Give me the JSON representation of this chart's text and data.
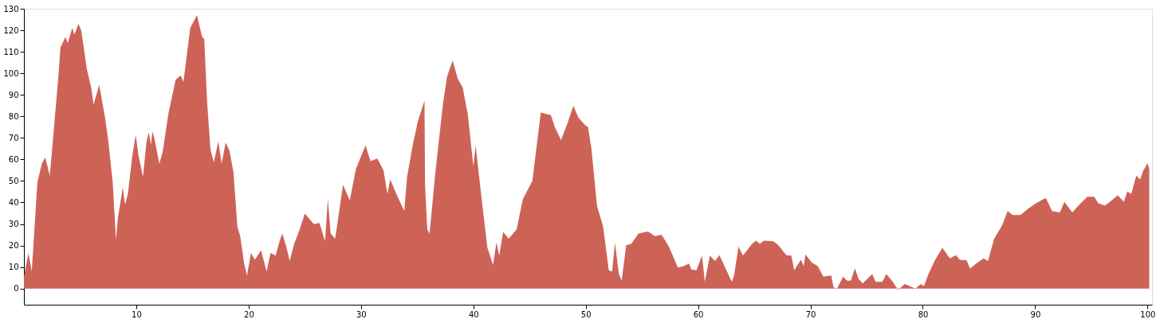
{
  "chart_data": {
    "type": "area",
    "x": [
      0,
      0.2,
      0.4,
      0.7,
      1.2,
      1.6,
      1.9,
      2.3,
      2.5,
      3.1,
      3.25,
      3.7,
      3.9,
      4.3,
      4.5,
      4.85,
      5.1,
      5.6,
      6.0,
      6.2,
      6.7,
      7.2,
      7.5,
      7.9,
      8.2,
      8.35,
      8.8,
      9.0,
      9.25,
      9.65,
      9.95,
      10.2,
      10.6,
      10.9,
      11.1,
      11.3,
      11.45,
      11.6,
      12.05,
      12.35,
      12.85,
      13.5,
      13.95,
      14.2,
      14.8,
      15.4,
      15.85,
      16.05,
      16.3,
      16.6,
      16.9,
      17.3,
      17.6,
      17.95,
      18.3,
      18.65,
      19.0,
      19.25,
      19.6,
      19.85,
      20.2,
      20.55,
      21.1,
      21.6,
      21.95,
      22.4,
      22.75,
      23.0,
      23.35,
      23.65,
      24.05,
      24.5,
      25.0,
      25.8,
      26.3,
      26.8,
      27.05,
      27.3,
      27.7,
      28.4,
      29.0,
      29.55,
      30.4,
      30.85,
      31.45,
      32.0,
      32.35,
      32.6,
      33.2,
      33.85,
      34.1,
      34.6,
      35.05,
      35.65,
      35.7,
      35.9,
      36.1,
      36.6,
      37.3,
      37.65,
      38.15,
      38.6,
      39.05,
      39.5,
      40.0,
      40.2,
      40.7,
      41.25,
      41.75,
      42.05,
      42.3,
      42.65,
      43.15,
      43.85,
      44.4,
      45.25,
      46.0,
      46.9,
      47.25,
      47.8,
      48.3,
      48.9,
      49.35,
      50.0,
      50.2,
      50.5,
      51.0,
      51.55,
      52.05,
      52.35,
      52.6,
      52.95,
      53.2,
      53.6,
      54.05,
      54.7,
      55.55,
      56.15,
      56.75,
      57.4,
      58.2,
      58.7,
      59.2,
      59.4,
      59.85,
      60.35,
      60.6,
      61.05,
      61.5,
      61.9,
      63.0,
      63.2,
      63.6,
      64.0,
      64.8,
      65.15,
      65.5,
      65.85,
      66.7,
      67.15,
      67.85,
      68.3,
      68.55,
      69.15,
      69.4,
      69.55,
      70.1,
      70.65,
      71.15,
      71.85,
      72.05,
      72.35,
      72.9,
      73.25,
      73.6,
      73.95,
      74.3,
      74.65,
      75.5,
      75.8,
      76.4,
      76.75,
      77.25,
      77.8,
      78.4,
      79.35,
      79.8,
      80.1,
      80.5,
      81.1,
      81.75,
      82.4,
      82.95,
      83.3,
      83.9,
      84.2,
      84.75,
      85.4,
      85.8,
      86.35,
      87.05,
      87.55,
      88.0,
      88.7,
      89.4,
      90.1,
      90.95,
      91.5,
      92.2,
      92.6,
      93.3,
      93.95,
      94.65,
      95.25,
      95.6,
      96.2,
      96.8,
      97.35,
      97.9,
      98.2,
      98.55,
      99.0,
      99.35,
      99.6,
      100.0,
      100.15
    ],
    "series": [
      {
        "color": "#cd6357",
        "values": [
          5.5,
          11,
          16.5,
          8,
          49.5,
          58,
          61,
          52.5,
          64,
          100.7,
          112,
          117,
          114,
          121,
          118,
          123,
          120,
          102,
          93,
          85.5,
          94.6,
          80,
          69,
          49.5,
          22.6,
          32.4,
          47,
          39,
          44,
          61.7,
          71.4,
          61.7,
          51.9,
          67.8,
          72.6,
          67,
          73,
          70,
          58,
          63.5,
          81,
          97,
          99,
          96,
          121,
          127,
          117,
          116,
          87,
          64.7,
          58.6,
          68.4,
          58,
          67.8,
          64,
          54,
          28.7,
          24.4,
          11.6,
          6,
          16.5,
          13.4,
          17.7,
          8,
          16.5,
          15.3,
          22,
          25.6,
          19.5,
          12.8,
          20.8,
          26.9,
          34.8,
          29.9,
          30.5,
          22,
          41.5,
          25.6,
          23.2,
          48.2,
          40.9,
          55.6,
          66.5,
          59.2,
          60.4,
          55,
          44,
          50.7,
          43.3,
          36,
          51.9,
          66.5,
          77.5,
          87.3,
          48,
          27.5,
          25.6,
          53,
          86,
          98.3,
          106,
          97.7,
          93.4,
          81,
          56.8,
          66.5,
          43.3,
          18.9,
          11,
          21.4,
          15.3,
          26.3,
          23.2,
          27.5,
          41.5,
          50,
          81.8,
          80.6,
          75,
          69,
          75.7,
          84.9,
          79.4,
          75.7,
          75,
          65.3,
          38.5,
          28.7,
          8.5,
          7.9,
          21.4,
          6.7,
          3.7,
          20.1,
          20.8,
          25.6,
          26.5,
          24.4,
          25,
          19.5,
          9.8,
          10.4,
          11.6,
          8.9,
          8.5,
          15.3,
          3.1,
          15.3,
          12.8,
          15.5,
          3.1,
          6.1,
          19.5,
          15.3,
          20.8,
          22.3,
          20.8,
          22.3,
          22,
          20.1,
          15.5,
          15.3,
          8.5,
          13.4,
          10.4,
          15.9,
          12.2,
          10.4,
          5.5,
          6.1,
          0.6,
          -0.2,
          5.5,
          3.7,
          3.7,
          9.4,
          4.3,
          2.4,
          6.7,
          3.1,
          3.1,
          6.7,
          3.7,
          -0.6,
          2.1,
          0,
          2.1,
          1.2,
          6.7,
          13.4,
          18.9,
          14,
          15.5,
          13.4,
          13.1,
          9.2,
          11.6,
          14,
          12.8,
          23.2,
          29.3,
          36,
          34.2,
          34.2,
          37.2,
          39.7,
          42.1,
          36,
          35.4,
          40.3,
          35.4,
          39.1,
          42.7,
          42.7,
          39.7,
          38.5,
          40.9,
          43.3,
          40.3,
          45.2,
          44,
          52.5,
          50.7,
          54.6,
          58.2,
          55.6
        ]
      }
    ],
    "xlim": [
      0,
      100.4
    ],
    "ylim": [
      -7.5,
      130
    ],
    "xticks": [
      10,
      20,
      30,
      40,
      50,
      60,
      70,
      80,
      90,
      100
    ],
    "yticks": [
      0,
      10,
      20,
      30,
      40,
      50,
      60,
      70,
      80,
      90,
      100,
      110,
      120,
      130
    ],
    "grid": false
  }
}
